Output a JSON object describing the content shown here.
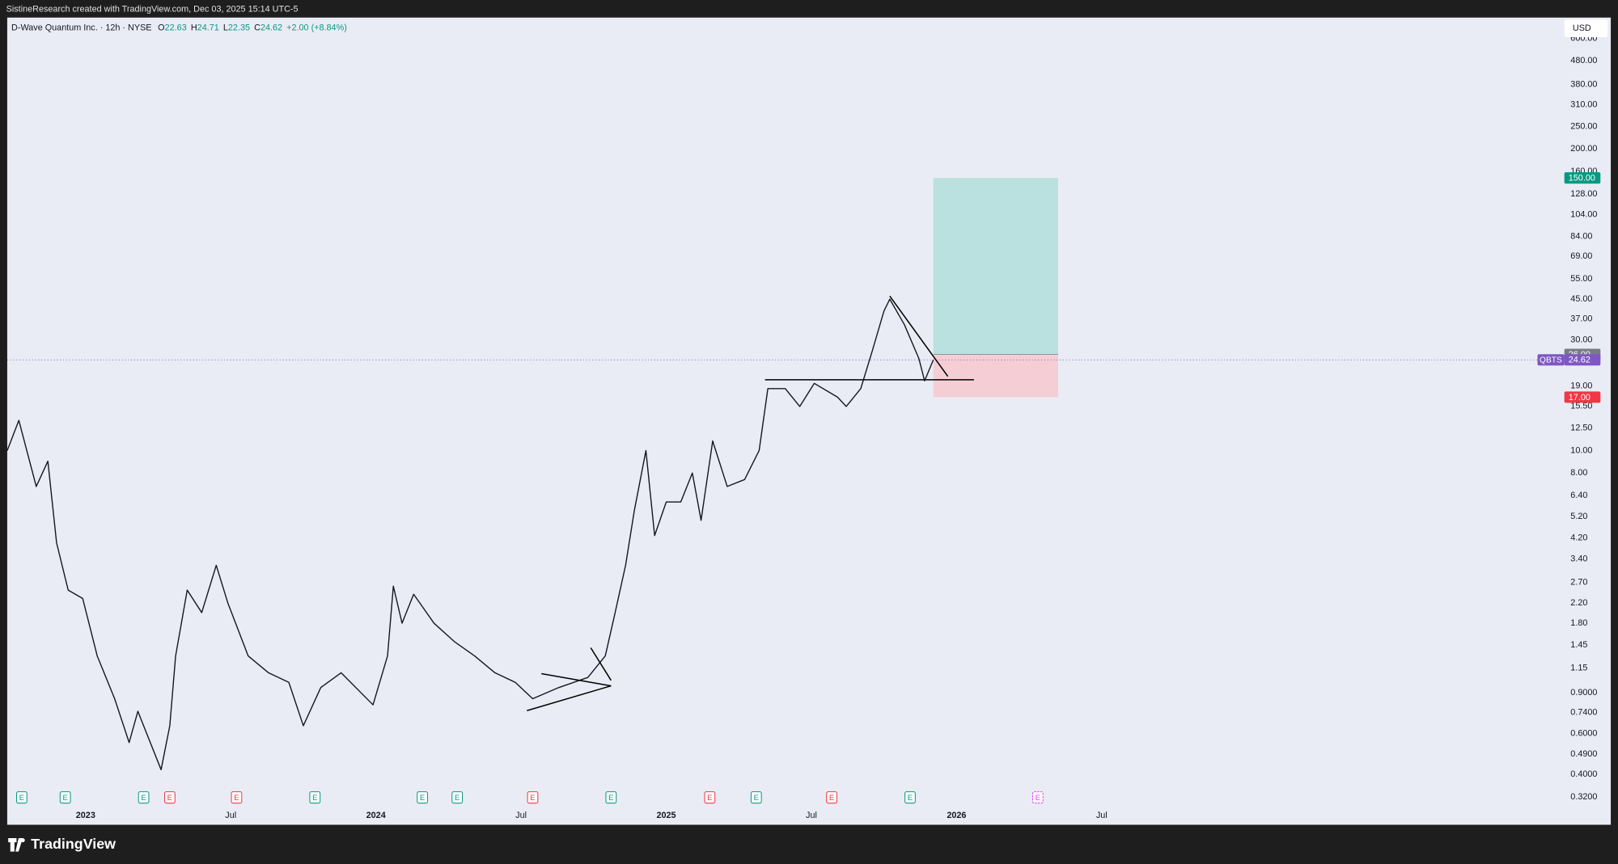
{
  "header": {
    "credit": "SistineResearch created with TradingView.com, Dec 03, 2025 15:14 UTC-5"
  },
  "footer": {
    "brand": "TradingView"
  },
  "chart_data": {
    "type": "line",
    "title": "D-Wave Quantum Inc. · 12h · NYSE",
    "ohlc": [
      {
        "label": "O",
        "value": 22.63
      },
      {
        "label": "H",
        "value": 24.71
      },
      {
        "label": "L",
        "value": 22.35
      },
      {
        "label": "C",
        "value": 24.62
      }
    ],
    "change": "+2.00 (+8.84%)",
    "currency": "USD",
    "symbol": "QBTS",
    "color": "#131722",
    "log_scale": true,
    "grid": false,
    "x": [
      2022.73,
      2022.77,
      2022.83,
      2022.87,
      2022.9,
      2022.94,
      2022.99,
      2023.04,
      2023.1,
      2023.15,
      2023.18,
      2023.26,
      2023.29,
      2023.31,
      2023.35,
      2023.4,
      2023.45,
      2023.49,
      2023.56,
      2023.63,
      2023.7,
      2023.75,
      2023.81,
      2023.88,
      2023.99,
      2024.04,
      2024.06,
      2024.09,
      2024.13,
      2024.2,
      2024.27,
      2024.34,
      2024.41,
      2024.48,
      2024.54,
      2024.63,
      2024.73,
      2024.79,
      2024.82,
      2024.86,
      2024.89,
      2024.93,
      2024.96,
      2025.0,
      2025.05,
      2025.09,
      2025.12,
      2025.16,
      2025.21,
      2025.27,
      2025.32,
      2025.35,
      2025.41,
      2025.46,
      2025.51,
      2025.59,
      2025.62,
      2025.67,
      2025.71,
      2025.75,
      2025.77,
      2025.82,
      2025.87,
      2025.89,
      2025.92
    ],
    "values": [
      10,
      13.5,
      7,
      9,
      4,
      2.5,
      2.3,
      1.3,
      0.85,
      0.55,
      0.75,
      0.42,
      0.65,
      1.3,
      2.5,
      2,
      3.2,
      2.2,
      1.3,
      1.1,
      1.0,
      0.65,
      0.95,
      1.1,
      0.8,
      1.3,
      2.6,
      1.8,
      2.4,
      1.8,
      1.5,
      1.3,
      1.1,
      1.0,
      0.85,
      0.95,
      1.05,
      1.3,
      1.9,
      3.2,
      5.5,
      10,
      4.3,
      6,
      6,
      8,
      5,
      11,
      7,
      7.5,
      10,
      18.5,
      18.5,
      15.5,
      19.5,
      17,
      15.5,
      18.5,
      27,
      40,
      45,
      35,
      25,
      20,
      24.62
    ],
    "last": {
      "value": 24.62,
      "label": "24.62"
    },
    "position": {
      "x": [
        2025.92,
        2026.35
      ],
      "entry": {
        "value": 26,
        "label": "26.00"
      },
      "target": {
        "value": 150,
        "label": "150.00"
      },
      "stop": {
        "value": 17,
        "label": "17.00"
      }
    },
    "trendlines": [
      {
        "x": [
          2025.34,
          2026.06
        ],
        "y": [
          20.2,
          20.2
        ]
      },
      {
        "x": [
          2025.77,
          2025.97
        ],
        "y": [
          46.4,
          20.9
        ]
      },
      {
        "x": [
          2024.52,
          2024.81
        ],
        "y": [
          0.755,
          0.966
        ]
      },
      {
        "x": [
          2024.57,
          2024.81
        ],
        "y": [
          1.09,
          0.966
        ]
      },
      {
        "x": [
          2024.74,
          2024.81
        ],
        "y": [
          1.41,
          1.02
        ]
      }
    ],
    "earnings": [
      {
        "x": 2022.78,
        "label": "E",
        "color": "#089981"
      },
      {
        "x": 2022.93,
        "label": "E",
        "color": "#089981"
      },
      {
        "x": 2023.2,
        "label": "E",
        "color": "#089981"
      },
      {
        "x": 2023.29,
        "label": "E",
        "color": "#f23645"
      },
      {
        "x": 2023.52,
        "label": "E",
        "color": "#f23645"
      },
      {
        "x": 2023.79,
        "label": "E",
        "color": "#089981"
      },
      {
        "x": 2024.16,
        "label": "E",
        "color": "#089981"
      },
      {
        "x": 2024.28,
        "label": "E",
        "color": "#089981"
      },
      {
        "x": 2024.54,
        "label": "E",
        "color": "#f23645"
      },
      {
        "x": 2024.81,
        "label": "E",
        "color": "#089981"
      },
      {
        "x": 2025.15,
        "label": "E",
        "color": "#f23645"
      },
      {
        "x": 2025.31,
        "label": "E",
        "color": "#089981"
      },
      {
        "x": 2025.57,
        "label": "E",
        "color": "#f23645"
      },
      {
        "x": 2025.84,
        "label": "E",
        "color": "#089981"
      },
      {
        "x": 2026.28,
        "label": "E",
        "color": "#e040fb"
      }
    ],
    "xlim": [
      2022.73,
      2028.09
    ],
    "xticks": [
      {
        "value": 2023,
        "label": "2023"
      },
      {
        "value": 2023.5,
        "label": "Jul"
      },
      {
        "value": 2024,
        "label": "2024"
      },
      {
        "value": 2024.5,
        "label": "Jul"
      },
      {
        "value": 2025,
        "label": "2025"
      },
      {
        "value": 2025.5,
        "label": "Jul"
      },
      {
        "value": 2026,
        "label": "2026"
      },
      {
        "value": 2026.5,
        "label": "Jul"
      }
    ],
    "ylim": [
      0.243,
      738
    ],
    "yticks": [
      {
        "value": 0.32,
        "label": "0.3200"
      },
      {
        "value": 0.4,
        "label": "0.4000"
      },
      {
        "value": 0.49,
        "label": "0.4900"
      },
      {
        "value": 0.6,
        "label": "0.6000"
      },
      {
        "value": 0.74,
        "label": "0.7400"
      },
      {
        "value": 0.9,
        "label": "0.9000"
      },
      1.15,
      1.45,
      {
        "value": 1.8,
        "label": "1.80"
      },
      {
        "value": 2.2,
        "label": "2.20"
      },
      {
        "value": 2.7,
        "label": "2.70"
      },
      {
        "value": 3.4,
        "label": "3.40"
      },
      {
        "value": 4.2,
        "label": "4.20"
      },
      {
        "value": 5.2,
        "label": "5.20"
      },
      {
        "value": 6.4,
        "label": "6.40"
      },
      {
        "value": 8,
        "label": "8.00"
      },
      {
        "value": 10,
        "label": "10.00"
      },
      {
        "value": 12.5,
        "label": "12.50"
      },
      {
        "value": 15.5,
        "label": "15.50"
      },
      {
        "value": 19,
        "label": "19.00"
      },
      {
        "value": 30,
        "label": "30.00"
      },
      {
        "value": 37,
        "label": "37.00"
      },
      {
        "value": 45,
        "label": "45.00"
      },
      {
        "value": 55,
        "label": "55.00"
      },
      {
        "value": 69,
        "label": "69.00"
      },
      {
        "value": 84,
        "label": "84.00"
      },
      {
        "value": 104,
        "label": "104.00"
      },
      {
        "value": 128,
        "label": "128.00"
      },
      {
        "value": 160,
        "label": "160.00"
      },
      {
        "value": 200,
        "label": "200.00"
      },
      {
        "value": 250,
        "label": "250.00"
      },
      {
        "value": 310,
        "label": "310.00"
      },
      {
        "value": 380,
        "label": "380.00"
      },
      {
        "value": 480,
        "label": "480.00"
      },
      {
        "value": 600,
        "label": "600.00"
      }
    ]
  }
}
